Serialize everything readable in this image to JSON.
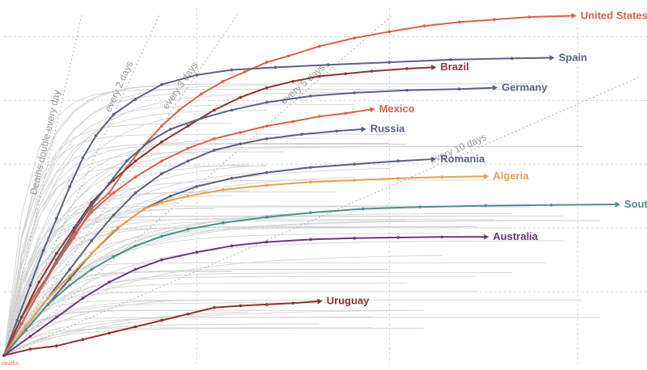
{
  "chart_data": {
    "type": "line",
    "title": "",
    "xlabel": "",
    "ylabel": "",
    "log_scale_y": true,
    "grid": true,
    "legend": "none (direct labels at line ends)",
    "axis_corner_label": "deaths",
    "x_range_days": [
      0,
      145
    ],
    "y_range_log10": [
      0.0,
      5.45
    ],
    "doubling_guides": [
      {
        "label": "Deaths double every day",
        "days": 1
      },
      {
        "label": "every 2 days",
        "days": 2
      },
      {
        "label": "every 3 days",
        "days": 3
      },
      {
        "label": "every 5 days",
        "days": 5
      },
      {
        "label": "every 10 days",
        "days": 10
      }
    ],
    "series": [
      {
        "name": "United States",
        "color": "#d9624f",
        "points": [
          [
            0,
            0
          ],
          [
            4,
            0.6
          ],
          [
            8,
            1.05
          ],
          [
            12,
            1.45
          ],
          [
            16,
            1.85
          ],
          [
            20,
            2.3
          ],
          [
            24,
            2.55
          ],
          [
            28,
            2.95
          ],
          [
            32,
            3.3
          ],
          [
            36,
            3.6
          ],
          [
            40,
            3.85
          ],
          [
            45,
            4.1
          ],
          [
            50,
            4.3
          ],
          [
            55,
            4.45
          ],
          [
            60,
            4.6
          ],
          [
            65,
            4.7
          ],
          [
            72,
            4.85
          ],
          [
            80,
            4.98
          ],
          [
            88,
            5.08
          ],
          [
            96,
            5.17
          ],
          [
            104,
            5.23
          ],
          [
            112,
            5.27
          ],
          [
            120,
            5.31
          ],
          [
            130,
            5.33
          ]
        ]
      },
      {
        "name": "Spain",
        "color": "#5a6480",
        "points": [
          [
            0,
            0
          ],
          [
            3,
            0.55
          ],
          [
            6,
            1.1
          ],
          [
            9,
            1.65
          ],
          [
            12,
            2.15
          ],
          [
            15,
            2.65
          ],
          [
            18,
            3.1
          ],
          [
            21,
            3.45
          ],
          [
            25,
            3.78
          ],
          [
            30,
            4.02
          ],
          [
            36,
            4.25
          ],
          [
            44,
            4.4
          ],
          [
            52,
            4.48
          ],
          [
            62,
            4.52
          ],
          [
            74,
            4.56
          ],
          [
            88,
            4.6
          ],
          [
            102,
            4.64
          ],
          [
            116,
            4.66
          ],
          [
            125,
            4.67
          ]
        ]
      },
      {
        "name": "Brazil",
        "color": "#8c3438",
        "points": [
          [
            0,
            0
          ],
          [
            4,
            0.6
          ],
          [
            8,
            1.15
          ],
          [
            12,
            1.6
          ],
          [
            16,
            2.0
          ],
          [
            20,
            2.4
          ],
          [
            25,
            2.75
          ],
          [
            30,
            3.05
          ],
          [
            36,
            3.35
          ],
          [
            42,
            3.6
          ],
          [
            48,
            3.85
          ],
          [
            54,
            4.05
          ],
          [
            60,
            4.2
          ],
          [
            66,
            4.3
          ],
          [
            72,
            4.38
          ],
          [
            78,
            4.42
          ],
          [
            84,
            4.46
          ],
          [
            92,
            4.5
          ],
          [
            98,
            4.52
          ]
        ]
      },
      {
        "name": "Germany",
        "color": "#5a6480",
        "points": [
          [
            0,
            0
          ],
          [
            4,
            0.5
          ],
          [
            8,
            1.0
          ],
          [
            12,
            1.5
          ],
          [
            16,
            1.95
          ],
          [
            20,
            2.35
          ],
          [
            24,
            2.7
          ],
          [
            28,
            3.05
          ],
          [
            33,
            3.35
          ],
          [
            38,
            3.55
          ],
          [
            45,
            3.72
          ],
          [
            52,
            3.85
          ],
          [
            60,
            3.97
          ],
          [
            70,
            4.07
          ],
          [
            80,
            4.12
          ],
          [
            92,
            4.16
          ],
          [
            104,
            4.18
          ],
          [
            112,
            4.2
          ]
        ]
      },
      {
        "name": "Mexico",
        "color": "#d9624f",
        "points": [
          [
            0,
            0
          ],
          [
            4,
            0.5
          ],
          [
            8,
            1.0
          ],
          [
            12,
            1.45
          ],
          [
            16,
            1.9
          ],
          [
            20,
            2.25
          ],
          [
            25,
            2.55
          ],
          [
            30,
            2.8
          ],
          [
            36,
            3.05
          ],
          [
            42,
            3.25
          ],
          [
            48,
            3.4
          ],
          [
            54,
            3.5
          ],
          [
            60,
            3.6
          ],
          [
            66,
            3.67
          ],
          [
            72,
            3.75
          ],
          [
            78,
            3.8
          ],
          [
            84,
            3.86
          ]
        ]
      },
      {
        "name": "Russia",
        "color": "#5a6480",
        "points": [
          [
            0,
            0
          ],
          [
            5,
            0.45
          ],
          [
            10,
            0.9
          ],
          [
            15,
            1.35
          ],
          [
            20,
            1.8
          ],
          [
            25,
            2.2
          ],
          [
            30,
            2.55
          ],
          [
            36,
            2.85
          ],
          [
            42,
            3.05
          ],
          [
            48,
            3.22
          ],
          [
            54,
            3.32
          ],
          [
            60,
            3.4
          ],
          [
            68,
            3.47
          ],
          [
            76,
            3.52
          ],
          [
            82,
            3.55
          ]
        ]
      },
      {
        "name": "Romania",
        "color": "#5a6480",
        "points": [
          [
            0,
            0
          ],
          [
            5,
            0.4
          ],
          [
            10,
            0.8
          ],
          [
            15,
            1.2
          ],
          [
            20,
            1.6
          ],
          [
            26,
            2.0
          ],
          [
            32,
            2.3
          ],
          [
            38,
            2.5
          ],
          [
            44,
            2.65
          ],
          [
            52,
            2.78
          ],
          [
            60,
            2.87
          ],
          [
            70,
            2.95
          ],
          [
            80,
            3.0
          ],
          [
            90,
            3.05
          ],
          [
            98,
            3.08
          ]
        ]
      },
      {
        "name": "Algeria",
        "color": "#e8a14e",
        "points": [
          [
            0,
            0
          ],
          [
            5,
            0.45
          ],
          [
            10,
            0.9
          ],
          [
            15,
            1.25
          ],
          [
            20,
            1.6
          ],
          [
            25,
            1.95
          ],
          [
            28,
            2.1
          ],
          [
            32,
            2.3
          ],
          [
            36,
            2.4
          ],
          [
            42,
            2.5
          ],
          [
            50,
            2.6
          ],
          [
            60,
            2.67
          ],
          [
            70,
            2.72
          ],
          [
            80,
            2.75
          ],
          [
            90,
            2.78
          ],
          [
            100,
            2.8
          ],
          [
            110,
            2.81
          ]
        ]
      },
      {
        "name": "South Korea",
        "color": "#4f8f8d",
        "points": [
          [
            0,
            0
          ],
          [
            5,
            0.4
          ],
          [
            10,
            0.8
          ],
          [
            15,
            1.1
          ],
          [
            20,
            1.35
          ],
          [
            25,
            1.55
          ],
          [
            30,
            1.72
          ],
          [
            36,
            1.87
          ],
          [
            42,
            1.98
          ],
          [
            50,
            2.08
          ],
          [
            60,
            2.17
          ],
          [
            70,
            2.24
          ],
          [
            82,
            2.3
          ],
          [
            95,
            2.33
          ],
          [
            110,
            2.35
          ],
          [
            125,
            2.36
          ],
          [
            140,
            2.37
          ]
        ]
      },
      {
        "name": "Australia",
        "color": "#693a7a",
        "points": [
          [
            0,
            0
          ],
          [
            6,
            0.3
          ],
          [
            12,
            0.6
          ],
          [
            18,
            0.9
          ],
          [
            24,
            1.15
          ],
          [
            30,
            1.35
          ],
          [
            36,
            1.5
          ],
          [
            44,
            1.62
          ],
          [
            52,
            1.72
          ],
          [
            60,
            1.78
          ],
          [
            70,
            1.82
          ],
          [
            80,
            1.84
          ],
          [
            90,
            1.85
          ],
          [
            100,
            1.86
          ],
          [
            110,
            1.86
          ]
        ]
      },
      {
        "name": "Uruguay",
        "color": "#8c3438",
        "points": [
          [
            0,
            0
          ],
          [
            6,
            0.1
          ],
          [
            12,
            0.15
          ],
          [
            18,
            0.25
          ],
          [
            24,
            0.35
          ],
          [
            30,
            0.45
          ],
          [
            36,
            0.55
          ],
          [
            42,
            0.65
          ],
          [
            48,
            0.75
          ],
          [
            54,
            0.78
          ],
          [
            60,
            0.8
          ],
          [
            66,
            0.82
          ],
          [
            72,
            0.85
          ]
        ]
      }
    ]
  }
}
